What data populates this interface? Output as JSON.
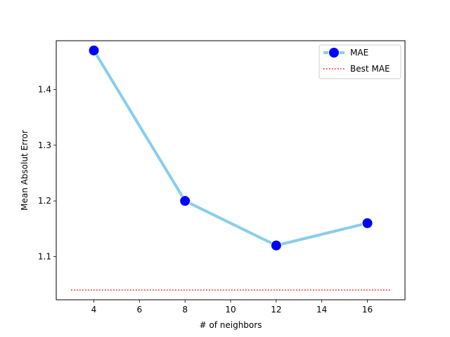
{
  "chart_data": {
    "type": "line",
    "xlabel": "# of neighbors",
    "ylabel": "Mean Absolut Error",
    "xlim": [
      2.35,
      17.65
    ],
    "ylim": [
      1.0225,
      1.4875
    ],
    "xticks": [
      4,
      6,
      8,
      10,
      12,
      14,
      16
    ],
    "yticks": [
      1.1,
      1.2,
      1.3,
      1.4
    ],
    "grid": false,
    "legend": "top-right",
    "series": [
      {
        "name": "MAE",
        "x": [
          4,
          8,
          12,
          16
        ],
        "values": [
          1.47,
          1.2,
          1.12,
          1.16
        ],
        "line_color": "#87ceeb",
        "marker_color": "#0000ff",
        "marker": "circle"
      },
      {
        "name": "Best MAE",
        "x": [
          3,
          17
        ],
        "values": [
          1.04,
          1.04
        ],
        "line_color": "#ff0000",
        "line_style": "dotted"
      }
    ]
  }
}
